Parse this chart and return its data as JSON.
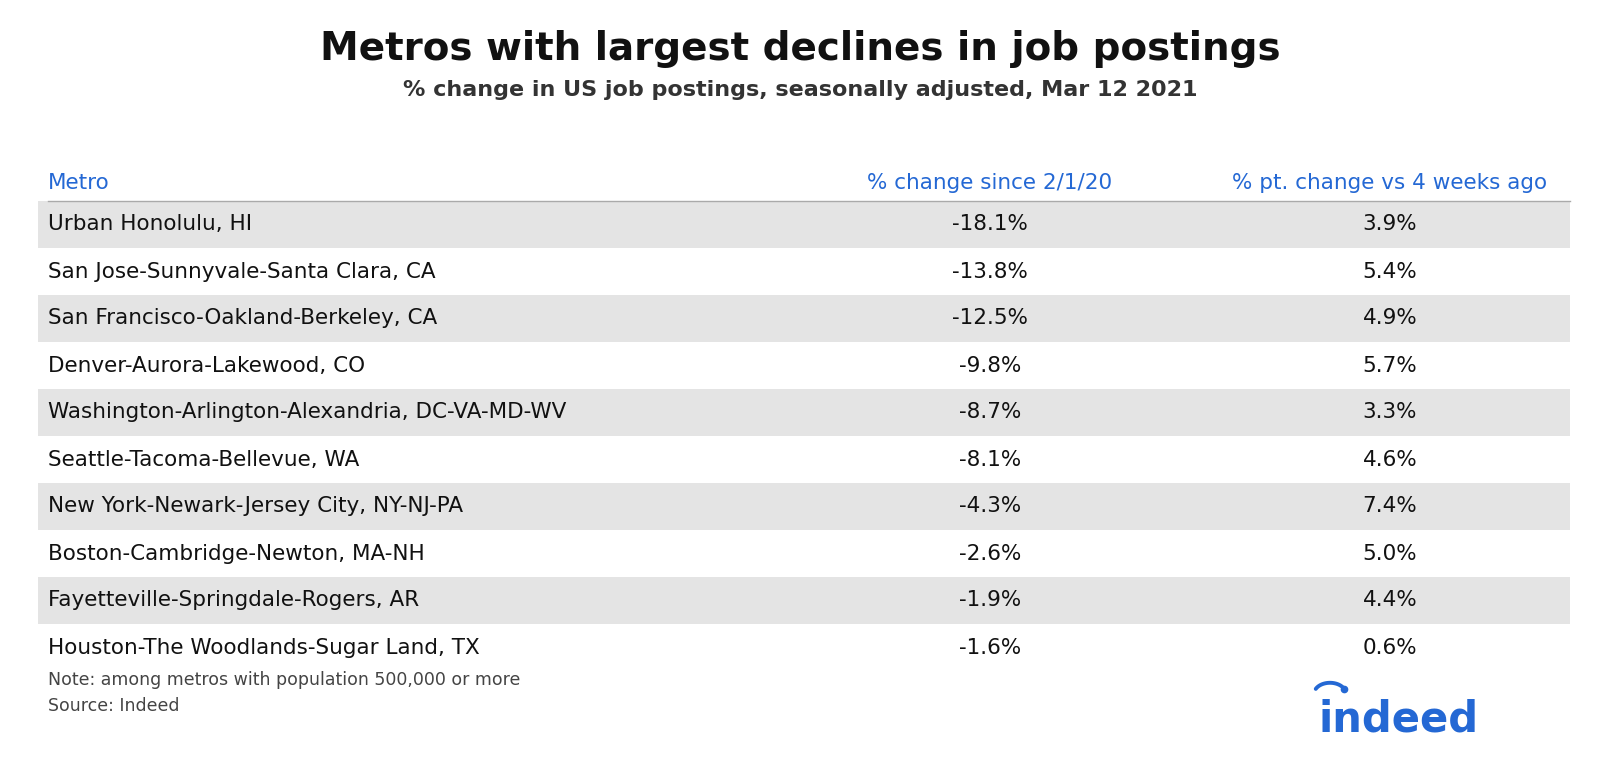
{
  "title": "Metros with largest declines in job postings",
  "subtitle": "% change in US job postings, seasonally adjusted, Mar 12 2021",
  "col_header_metro": "Metro",
  "col_header_change": "% change since 2/1/20",
  "col_header_pt_change": "% pt. change vs 4 weeks ago",
  "rows": [
    {
      "metro": "Urban Honolulu, HI",
      "change": "-18.1%",
      "pt_change": "3.9%"
    },
    {
      "metro": "San Jose-Sunnyvale-Santa Clara, CA",
      "change": "-13.8%",
      "pt_change": "5.4%"
    },
    {
      "metro": "San Francisco-Oakland-Berkeley, CA",
      "change": "-12.5%",
      "pt_change": "4.9%"
    },
    {
      "metro": "Denver-Aurora-Lakewood, CO",
      "change": "-9.8%",
      "pt_change": "5.7%"
    },
    {
      "metro": "Washington-Arlington-Alexandria, DC-VA-MD-WV",
      "change": "-8.7%",
      "pt_change": "3.3%"
    },
    {
      "metro": "Seattle-Tacoma-Bellevue, WA",
      "change": "-8.1%",
      "pt_change": "4.6%"
    },
    {
      "metro": "New York-Newark-Jersey City, NY-NJ-PA",
      "change": "-4.3%",
      "pt_change": "7.4%"
    },
    {
      "metro": "Boston-Cambridge-Newton, MA-NH",
      "change": "-2.6%",
      "pt_change": "5.0%"
    },
    {
      "metro": "Fayetteville-Springdale-Rogers, AR",
      "change": "-1.9%",
      "pt_change": "4.4%"
    },
    {
      "metro": "Houston-The Woodlands-Sugar Land, TX",
      "change": "-1.6%",
      "pt_change": "0.6%"
    }
  ],
  "note": "Note: among metros with population 500,000 or more",
  "source": "Source: Indeed",
  "title_fontsize": 28,
  "subtitle_fontsize": 16,
  "header_color": "#2468d4",
  "bg_color": "#ffffff",
  "row_alt_color": "#e4e4e4",
  "row_color": "#ffffff",
  "text_color": "#111111",
  "note_fontsize": 12.5,
  "table_fontsize": 15.5
}
